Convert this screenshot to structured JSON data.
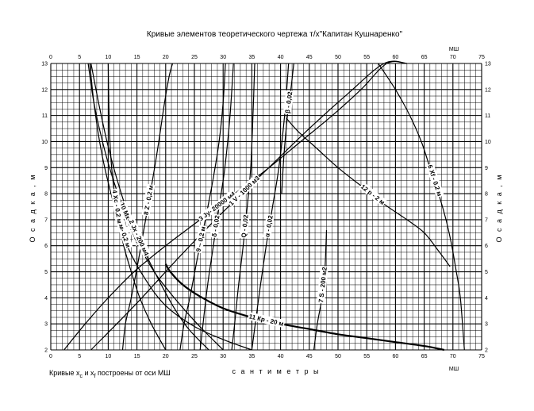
{
  "chart_data": {
    "type": "line",
    "title": "Кривые элементов теоретического чертежа т/х\"Капитан Кушнаренко\"",
    "xlabel": "с а н т и м е т р ы",
    "ylabel": "О с а д к а ,   м",
    "x_unit_top": "МШ",
    "x_unit_bottom": "МШ",
    "note": "Кривые x_c и x_f построены от оси МШ",
    "note_parts": [
      "Кривые x",
      "c",
      " и x",
      "f",
      " построены от оси МШ"
    ],
    "xlim": [
      0,
      75
    ],
    "ylim": [
      2,
      13
    ],
    "x_ticks": [
      "0",
      "5",
      "10",
      "15",
      "20",
      "25",
      "30",
      "35",
      "40",
      "45",
      "50",
      "55",
      "60",
      "65",
      "70",
      "75"
    ],
    "y_ticks": [
      "2",
      "3",
      "4",
      "5",
      "6",
      "7",
      "8",
      "9",
      "10",
      "11",
      "12",
      "13"
    ],
    "grid": true,
    "series": [
      {
        "name": "5 См- 0,2 м",
        "label": "5 См- 0,2 м",
        "x": [
          6.8,
          7.5,
          8.5,
          9.8,
          11.5,
          13.5,
          16.5,
          20.0,
          25.0,
          30.0,
          35.0
        ],
        "y": [
          13.0,
          11.5,
          10.0,
          8.6,
          7.2,
          5.9,
          4.7,
          3.7,
          2.9,
          2.4,
          2.0
        ]
      },
      {
        "name": "10 Мх- 2 тм/см",
        "label": "10 Мх- 2 тм/см",
        "x": [
          6.5,
          7.5,
          9.0,
          10.5,
          12.5,
          15.0,
          18.0,
          21.5,
          25.5,
          30.0
        ],
        "y": [
          13.0,
          11.5,
          10.0,
          8.8,
          7.5,
          6.2,
          5.0,
          4.0,
          3.0,
          2.0
        ]
      },
      {
        "name": "2 Jx - 200 м4",
        "label": "2 Jx - 200 м4",
        "x": [
          7.0,
          8.5,
          10.0,
          12.0,
          14.0,
          16.5,
          19.0,
          21.5,
          24.0,
          27.5
        ],
        "y": [
          13.0,
          11.3,
          9.8,
          8.2,
          6.9,
          5.7,
          4.6,
          3.6,
          2.8,
          2.0
        ]
      },
      {
        "name": "4 Хс - 0,2 м",
        "label": "4 Хс - 0,2 м",
        "x": [
          10.0,
          10.1,
          10.3,
          10.6,
          11.1,
          11.8,
          12.7,
          14.0,
          15.5,
          17.5,
          20.0
        ],
        "y": [
          13.0,
          11.5,
          10.0,
          9.0,
          8.0,
          7.0,
          6.0,
          5.0,
          4.0,
          3.0,
          2.0
        ]
      },
      {
        "name": "3 Jy- 20000 м4",
        "label": "3 Jy- 20000 м4",
        "x": [
          2.3,
          6.0,
          10.0,
          14.5,
          20.0,
          26.0,
          32.0,
          38.0,
          43.5,
          49.0,
          54.0,
          58.5,
          62.0
        ],
        "y": [
          2.0,
          3.0,
          4.0,
          5.0,
          6.0,
          7.0,
          8.0,
          9.0,
          10.0,
          11.0,
          12.0,
          13.0,
          13.5
        ]
      },
      {
        "name": "6 Хf - 0,2 м",
        "label": "6 Хf - 0,2 м",
        "x": [
          57.0,
          60.0,
          62.5,
          64.5,
          66.0,
          67.5,
          68.8,
          69.8,
          70.6,
          71.3,
          72.0
        ],
        "y": [
          13.0,
          12.0,
          11.0,
          10.0,
          9.0,
          8.0,
          7.0,
          6.0,
          5.0,
          4.0,
          2.0
        ]
      },
      {
        "name": "11 Кр - 20 м",
        "label": "11 Кр - 20 м",
        "x": [
          20.0,
          20.8,
          23.0,
          26.0,
          30.0,
          35.0,
          40.0,
          45.0,
          50.0,
          55.0,
          60.0,
          65.0,
          68.5
        ],
        "y": [
          5.3,
          5.0,
          4.5,
          4.05,
          3.6,
          3.25,
          3.0,
          2.8,
          2.6,
          2.45,
          2.3,
          2.15,
          2.0
        ]
      },
      {
        "name": "12 р - 2 м",
        "label": "12 р - 2 м",
        "x": [
          41.0,
          43.0,
          46.0,
          50.0,
          54.0,
          58.0,
          62.0,
          65.0,
          67.5,
          69.5
        ],
        "y": [
          10.9,
          10.4,
          9.8,
          9.0,
          8.3,
          7.6,
          7.0,
          6.5,
          5.8,
          5.2
        ]
      },
      {
        "name": "1 V - 1000 м3",
        "label": "1 V - 1000 м3",
        "x": [
          7.0,
          15.0,
          22.5,
          30.0,
          37.5,
          44.5,
          51.5,
          58.0,
          62.0
        ],
        "y": [
          2.0,
          3.8,
          5.6,
          7.3,
          8.9,
          10.4,
          11.8,
          13.0,
          13.5
        ]
      },
      {
        "name": "7 S - 200 м2",
        "label": "7 S - 200 м2",
        "x": [
          45.8,
          46.4,
          47.2,
          47.7,
          47.9,
          48.0
        ],
        "y": [
          2.0,
          3.0,
          4.0,
          5.0,
          6.0,
          6.6
        ]
      },
      {
        "name": "8 Z - 0,2 м",
        "label": "8 Z - 0,2 м",
        "x": [
          12.5,
          13.0,
          14.0,
          15.3,
          16.5,
          17.7,
          18.8,
          19.8,
          20.6,
          21.2
        ],
        "y": [
          2.0,
          3.0,
          4.0,
          5.5,
          7.0,
          8.5,
          10.0,
          11.5,
          12.5,
          13.0
        ]
      },
      {
        "name": "9 ‒ 0,2 м",
        "label": "9 ‒ 0,2 м",
        "x": [
          22.5,
          23.2,
          24.2,
          25.5,
          26.9,
          28.2,
          29.3,
          30.0,
          30.4
        ],
        "y": [
          2.0,
          3.0,
          4.0,
          5.5,
          7.0,
          8.5,
          10.0,
          11.5,
          13.0
        ]
      },
      {
        "name": "Q - 0,02",
        "label": "Q - 0,02",
        "x": [
          31.5,
          32.0,
          32.7,
          33.5,
          34.2,
          34.8,
          35.2,
          35.5
        ],
        "y": [
          2.0,
          3.0,
          4.5,
          6.0,
          7.5,
          9.0,
          11.0,
          13.0
        ]
      },
      {
        "name": "δ - 0,02",
        "label": "δ - 0,02",
        "x": [
          26.0,
          26.5,
          27.3,
          28.3,
          29.3,
          30.3,
          31.2,
          31.8
        ],
        "y": [
          2.0,
          3.0,
          4.5,
          6.0,
          7.5,
          9.0,
          11.0,
          13.0
        ]
      },
      {
        "name": "α - 0,02",
        "label": "α - 0,02",
        "x": [
          35.0,
          35.6,
          36.5,
          37.5,
          38.6,
          39.7,
          40.7,
          41.4
        ],
        "y": [
          2.0,
          3.0,
          4.5,
          6.0,
          7.5,
          9.0,
          11.0,
          13.0
        ]
      },
      {
        "name": "β - 0,02",
        "label": "β - 0,02",
        "x": [
          40.2,
          40.6,
          41.2,
          41.8,
          42.1,
          42.3
        ],
        "y": [
          8.0,
          9.5,
          11.0,
          12.0,
          12.6,
          13.0
        ]
      }
    ]
  }
}
